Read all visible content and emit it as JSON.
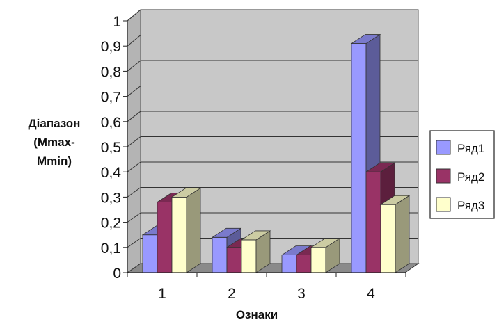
{
  "chart_data": {
    "type": "bar",
    "title": "",
    "xlabel": "Ознаки",
    "ylabel": [
      "Діапазон",
      "(Mmax-",
      "Mmin)"
    ],
    "categories": [
      "1",
      "2",
      "3",
      "4"
    ],
    "ylim": [
      0,
      1
    ],
    "yticks": [
      "0",
      "0,1",
      "0,2",
      "0,3",
      "0,4",
      "0,5",
      "0,6",
      "0,7",
      "0,8",
      "0,9",
      "1"
    ],
    "grid": true,
    "legend_position": "right",
    "series": [
      {
        "name": "Ряд1",
        "values": [
          0.15,
          0.14,
          0.07,
          0.91
        ],
        "color": "#9999FF"
      },
      {
        "name": "Ряд2",
        "values": [
          0.28,
          0.1,
          0.07,
          0.4
        ],
        "color": "#993366"
      },
      {
        "name": "Ряд3",
        "values": [
          0.3,
          0.13,
          0.1,
          0.27
        ],
        "color": "#FFFFCC"
      }
    ]
  }
}
